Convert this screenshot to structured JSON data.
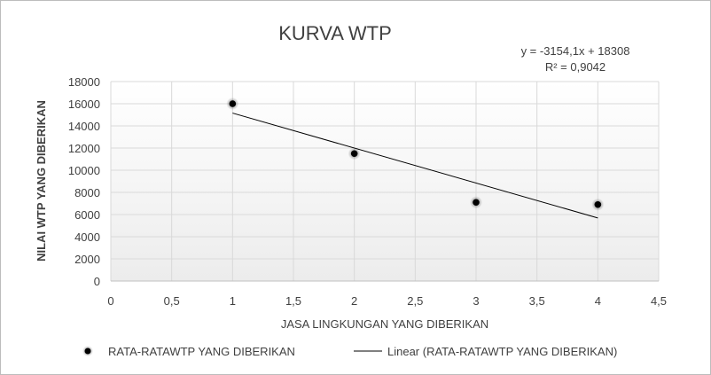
{
  "chart_data": {
    "type": "scatter",
    "title": "KURVA WTP",
    "xlabel": "JASA LINGKUNGAN YANG DIBERIKAN",
    "ylabel": "NILAI WTP YANG DIBERIKAN",
    "xlim": [
      0,
      4.5
    ],
    "ylim": [
      0,
      18000
    ],
    "x_ticks": [
      0,
      0.5,
      1,
      1.5,
      2,
      2.5,
      3,
      3.5,
      4,
      4.5
    ],
    "x_tick_labels": [
      "0",
      "0,5",
      "1",
      "1,5",
      "2",
      "2,5",
      "3",
      "3,5",
      "4",
      "4,5"
    ],
    "y_ticks": [
      0,
      2000,
      4000,
      6000,
      8000,
      10000,
      12000,
      14000,
      16000,
      18000
    ],
    "y_tick_labels": [
      "0",
      "2000",
      "4000",
      "6000",
      "8000",
      "10000",
      "12000",
      "14000",
      "16000",
      "18000"
    ],
    "grid": true,
    "legend_position": "bottom",
    "series": [
      {
        "name": "RATA-RATAWTP YANG DIBERIKAN",
        "points": [
          {
            "x": 1,
            "y": 16000
          },
          {
            "x": 2,
            "y": 11500
          },
          {
            "x": 3,
            "y": 7100
          },
          {
            "x": 4,
            "y": 6900
          }
        ]
      }
    ],
    "trendline": {
      "name": "Linear (RATA-RATAWTP YANG DIBERIKAN)",
      "slope": -3154.1,
      "intercept": 18308,
      "x_range": [
        1,
        4
      ],
      "equation": "y = -3154,1x + 18308",
      "r_squared": "R² = 0,9042"
    },
    "colors": {
      "marker": "#000000",
      "trendline": "#000000",
      "grid": "#d9d9d9",
      "text": "#404040"
    }
  }
}
